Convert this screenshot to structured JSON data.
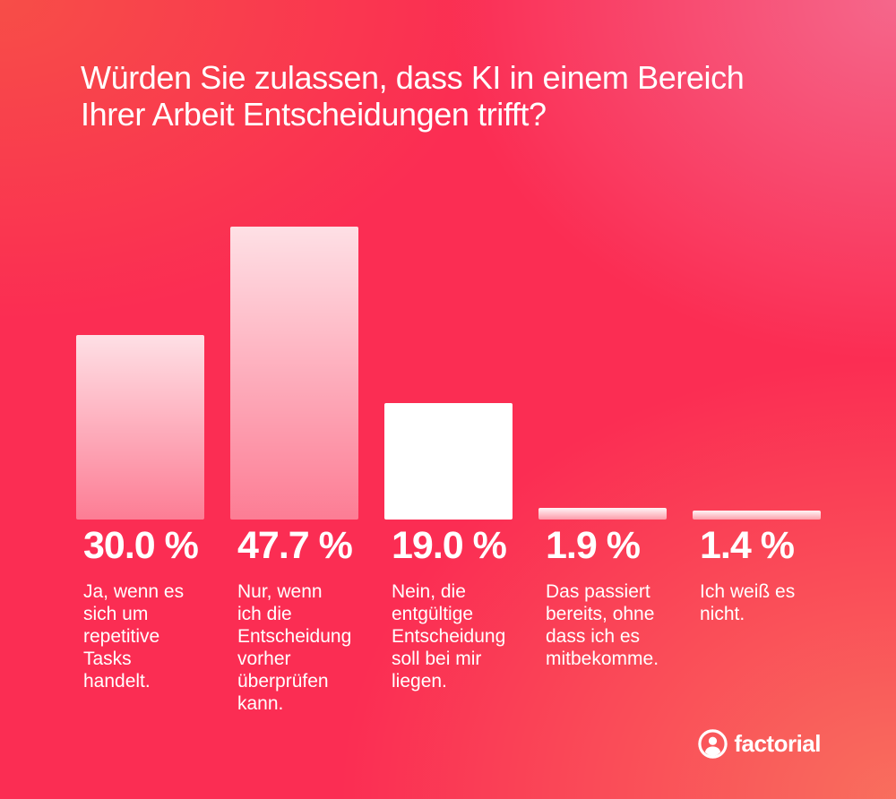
{
  "title": {
    "text": "Würden Sie zulassen, dass KI in einem Bereich\nIhrer Arbeit Entscheidungen trifft?"
  },
  "chart_data": {
    "type": "bar",
    "title": "Würden Sie zulassen, dass KI in einem Bereich Ihrer Arbeit Entscheidungen trifft?",
    "unit": "%",
    "ylim": [
      0,
      50
    ],
    "grid": false,
    "legend": "none",
    "categories": [
      "Ja, wenn es sich um repetitive Tasks handelt.",
      "Nur, wenn ich die Entscheidung vorher überprüfen kann.",
      "Nein, die entgültige Entscheidung soll bei mir liegen.",
      "Das passiert bereits, ohne dass ich es mitbekomme.",
      "Ich weiß es nicht."
    ],
    "values": [
      30.0,
      47.7,
      19.0,
      1.9,
      1.4
    ],
    "bars": [
      {
        "value": 30.0,
        "value_label": "30.0 %",
        "label": "Ja, wenn es sich um repetitive Tasks handelt.",
        "label_lines": "Ja, wenn es\nsich um\nrepetitive\nTasks\nhandelt.",
        "fill": "gradient-translucent"
      },
      {
        "value": 47.7,
        "value_label": "47.7 %",
        "label": "Nur, wenn ich die Entscheidung vorher überprüfen kann.",
        "label_lines": "Nur, wenn\nich die\nEntscheidung\nvorher\nüberprüfen\nkann.",
        "fill": "gradient-translucent"
      },
      {
        "value": 19.0,
        "value_label": "19.0 %",
        "label": "Nein, die entgültige Entscheidung soll bei mir liegen.",
        "label_lines": "Nein, die\nentgültige\nEntscheidung\nsoll bei mir\nliegen.",
        "fill": "solid-white"
      },
      {
        "value": 1.9,
        "value_label": "1.9 %",
        "label": "Das passiert bereits, ohne dass ich es mitbekomme.",
        "label_lines": "Das passiert\nbereits, ohne\ndass ich es\nmitbekomme.",
        "fill": "gradient-strip"
      },
      {
        "value": 1.4,
        "value_label": "1.4 %",
        "label": "Ich weiß es nicht.",
        "label_lines": "Ich weiß es\nnicht.",
        "fill": "gradient-strip"
      }
    ]
  },
  "branding": {
    "logo_text": "factorial",
    "logo_icon": "person-in-circle-icon"
  },
  "colors": {
    "background_pink": "#fb2d53",
    "background_orange_top_left": "#f4524f",
    "background_muted_pink_top_right": "#ee6b90",
    "background_salmon_bottom_right": "#f37263",
    "text": "#ffffff",
    "bar_solid": "#ffffff"
  }
}
